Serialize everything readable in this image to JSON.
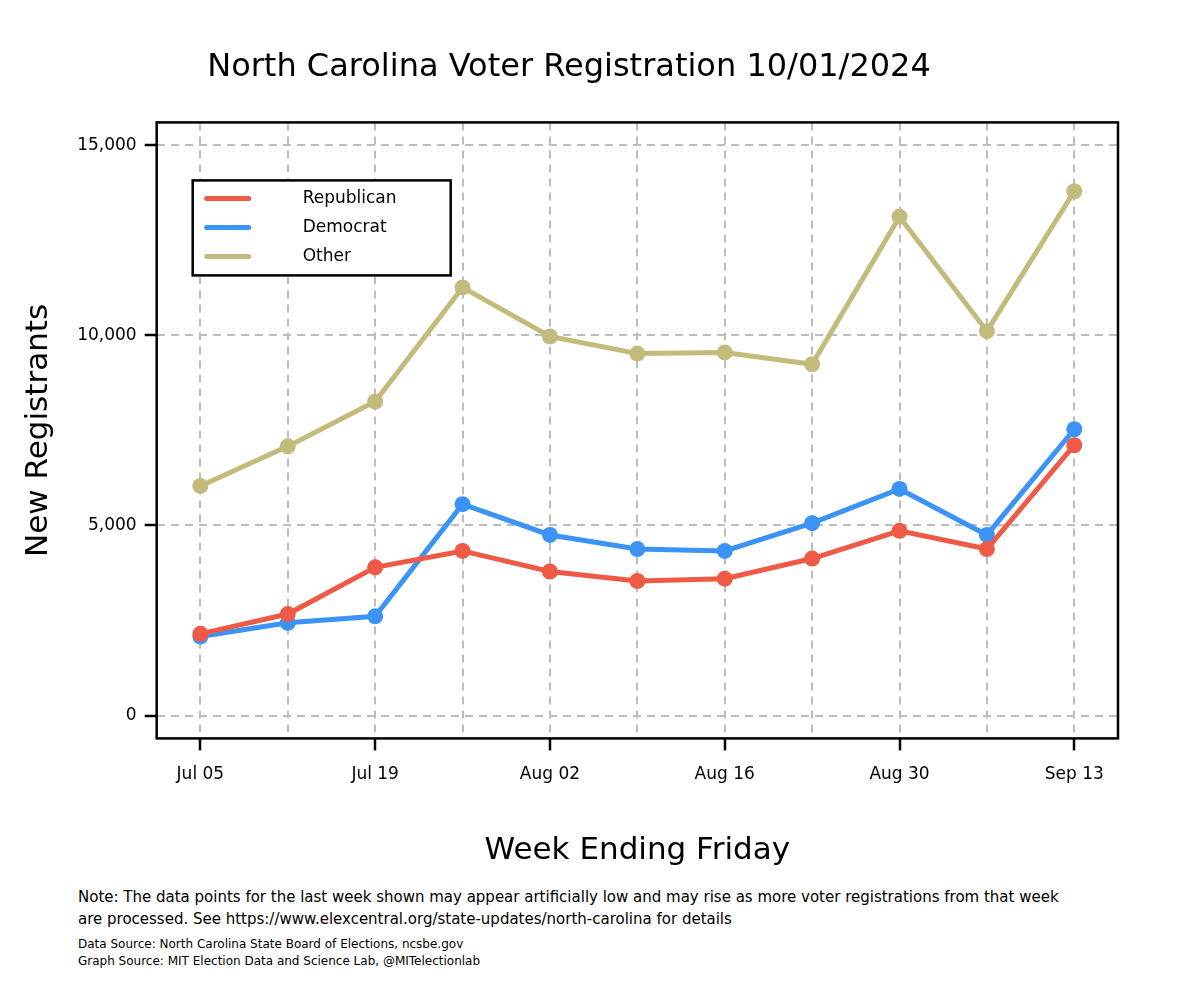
{
  "chart_data": {
    "type": "line",
    "title": "North Carolina Voter Registration 10/01/2024",
    "x_label": "Week Ending Friday",
    "y_label": "New Registrants",
    "categories": [
      "Jul 05",
      null,
      "Jul 19",
      null,
      "Aug 02",
      null,
      "Aug 16",
      null,
      "Aug 30",
      null,
      "Sep 13"
    ],
    "series": [
      {
        "name": "Republican",
        "color": "#ee5a45",
        "marker": "circle",
        "values": [
          2150,
          2670,
          3900,
          4330,
          3790,
          3540,
          3600,
          4130,
          4860,
          4380,
          7110
        ]
      },
      {
        "name": "Democrat",
        "color": "#3b94f5",
        "marker": "circle",
        "values": [
          2080,
          2440,
          2610,
          5560,
          4750,
          4380,
          4330,
          5060,
          5960,
          4750,
          7530
        ]
      },
      {
        "name": "Other",
        "color": "#c2bb7b",
        "marker": "circle",
        "values": [
          6040,
          7080,
          8260,
          11260,
          9970,
          9520,
          9550,
          9240,
          13120,
          10110,
          13790
        ]
      }
    ],
    "ylim": [
      -600,
      15600
    ],
    "yticks": [
      0,
      {
        "value": 5000,
        "label": "5,000"
      },
      {
        "value": 10000,
        "label": "10,000"
      },
      {
        "value": 15000,
        "label": "15,000"
      }
    ],
    "grid": true,
    "legend": "top-left",
    "annotations": [
      "Note: The data points for the last week shown may appear artificially low and may rise as more voter registrations from that week are processed. See https://www.elexcentral.org/state-updates/north-carolina for details",
      "Data Source: North Carolina State Board of Elections, ncsbe.gov",
      "Graph Source: MIT Election Data and Science Lab, @MITelectionlab"
    ]
  }
}
